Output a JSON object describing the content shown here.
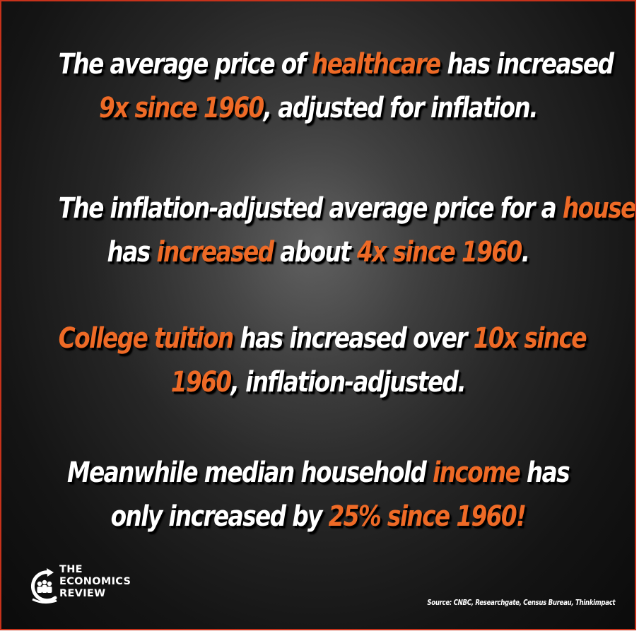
{
  "statements": [
    {
      "lines": [
        [
          {
            "text": "The average price of ",
            "highlight": false
          },
          {
            "text": "healthcare",
            "highlight": true
          },
          {
            "text": " has increased",
            "highlight": false
          }
        ],
        [
          {
            "text": "9x since 1960",
            "highlight": true
          },
          {
            "text": ", adjusted for inflation.",
            "highlight": false
          }
        ]
      ]
    },
    {
      "lines": [
        [
          {
            "text": "The inflation-adjusted average price for a ",
            "highlight": false
          },
          {
            "text": "house",
            "highlight": true
          }
        ],
        [
          {
            "text": "has ",
            "highlight": false
          },
          {
            "text": "increased",
            "highlight": true
          },
          {
            "text": " about ",
            "highlight": false
          },
          {
            "text": "4x since 1960",
            "highlight": true
          },
          {
            "text": ".",
            "highlight": false
          }
        ]
      ]
    },
    {
      "lines": [
        [
          {
            "text": "College tuition",
            "highlight": true
          },
          {
            "text": " has increased over ",
            "highlight": false
          },
          {
            "text": "10x since",
            "highlight": true
          }
        ],
        [
          {
            "text": "1960",
            "highlight": true
          },
          {
            "text": ", inflation-adjusted.",
            "highlight": false
          }
        ]
      ]
    },
    {
      "lines": [
        [
          {
            "text": "Meanwhile median household ",
            "highlight": false
          },
          {
            "text": "income",
            "highlight": true
          },
          {
            "text": " has",
            "highlight": false
          }
        ],
        [
          {
            "text": "only increased by ",
            "highlight": false
          },
          {
            "text": "25% since 1960!",
            "highlight": true
          }
        ]
      ]
    }
  ],
  "logo": {
    "line1": "THE",
    "line2": "ECONOMICS",
    "line3": "REVIEW",
    "icon": "economics-review-logo-icon"
  },
  "source": "Source: CNBC, Researchgate, Census Bureau, Thinkimpact",
  "colors": {
    "highlight": "#ee6a26",
    "text": "#ffffff",
    "border": "#c7321b",
    "background": "#1c1c1c"
  }
}
